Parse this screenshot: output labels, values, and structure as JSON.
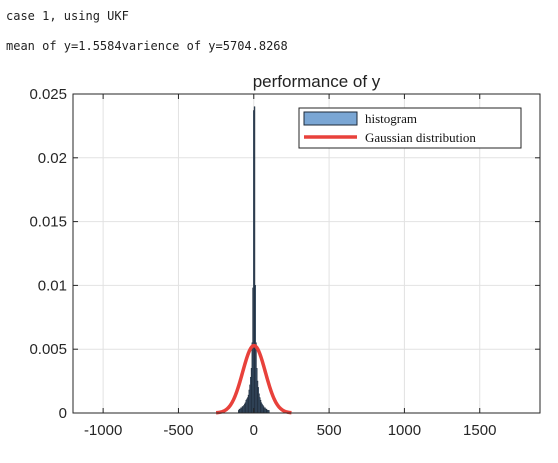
{
  "console": {
    "line1": "case 1, using UKF",
    "line2": "mean of y=1.5584varience of y=5704.8268"
  },
  "chart_data": {
    "type": "bar+line",
    "title": "performance of y",
    "xlabel": "",
    "ylabel": "",
    "xlim": [
      -1200,
      1900
    ],
    "ylim": [
      0,
      0.025
    ],
    "xticks": [
      -1000,
      -500,
      0,
      500,
      1000,
      1500
    ],
    "yticks": [
      0,
      0.005,
      0.01,
      0.015,
      0.02,
      0.025
    ],
    "xtick_labels": [
      "-1000",
      "-500",
      "0",
      "500",
      "1000",
      "1500"
    ],
    "ytick_labels": [
      "0",
      "0.005",
      "0.01",
      "0.015",
      "0.02",
      "0.025"
    ],
    "grid": true,
    "legend_position": "top-right",
    "legend": [
      {
        "label": "histogram",
        "type": "bar",
        "color": "#7aa6d4"
      },
      {
        "label": "Gaussian distribution",
        "type": "line",
        "color": "#e8413b"
      }
    ],
    "histogram": {
      "name": "histogram",
      "color": "#7aa6d4",
      "edge_color": "#1e2a38",
      "bin_width": 5,
      "bins": [
        {
          "x": -100,
          "y": 0.0002
        },
        {
          "x": -95,
          "y": 0.0003
        },
        {
          "x": -90,
          "y": 0.0003
        },
        {
          "x": -85,
          "y": 0.0004
        },
        {
          "x": -80,
          "y": 0.0004
        },
        {
          "x": -75,
          "y": 0.0005
        },
        {
          "x": -70,
          "y": 0.0005
        },
        {
          "x": -65,
          "y": 0.0006
        },
        {
          "x": -60,
          "y": 0.0007
        },
        {
          "x": -55,
          "y": 0.0008
        },
        {
          "x": -50,
          "y": 0.001
        },
        {
          "x": -45,
          "y": 0.0011
        },
        {
          "x": -40,
          "y": 0.0012
        },
        {
          "x": -35,
          "y": 0.0014
        },
        {
          "x": -30,
          "y": 0.0018
        },
        {
          "x": -25,
          "y": 0.0022
        },
        {
          "x": -20,
          "y": 0.0028
        },
        {
          "x": -15,
          "y": 0.0035
        },
        {
          "x": -10,
          "y": 0.0055
        },
        {
          "x": -5,
          "y": 0.0098
        },
        {
          "x": 0,
          "y": 0.0237
        },
        {
          "x": 5,
          "y": 0.024
        },
        {
          "x": 10,
          "y": 0.01
        },
        {
          "x": 15,
          "y": 0.0055
        },
        {
          "x": 20,
          "y": 0.0035
        },
        {
          "x": 25,
          "y": 0.0025
        },
        {
          "x": 30,
          "y": 0.002
        },
        {
          "x": 35,
          "y": 0.0015
        },
        {
          "x": 40,
          "y": 0.0012
        },
        {
          "x": 45,
          "y": 0.001
        },
        {
          "x": 50,
          "y": 0.0008
        },
        {
          "x": 55,
          "y": 0.0007
        },
        {
          "x": 60,
          "y": 0.0006
        },
        {
          "x": 65,
          "y": 0.0005
        },
        {
          "x": 70,
          "y": 0.0004
        },
        {
          "x": 75,
          "y": 0.0004
        },
        {
          "x": 80,
          "y": 0.0003
        },
        {
          "x": 85,
          "y": 0.0003
        },
        {
          "x": 90,
          "y": 0.0002
        },
        {
          "x": 95,
          "y": 0.0002
        },
        {
          "x": 100,
          "y": 0.0002
        }
      ]
    },
    "gaussian": {
      "name": "Gaussian distribution",
      "color": "#e8413b",
      "mean": 1.5584,
      "variance": 5704.8268,
      "x_range": [
        -250,
        250
      ]
    }
  }
}
